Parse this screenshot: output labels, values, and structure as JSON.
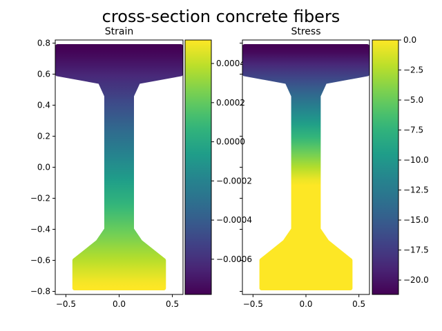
{
  "figure": {
    "suptitle": "cross-section concrete fibers"
  },
  "chart_data": [
    {
      "type": "scatter",
      "title": "Strain",
      "xlabel": "",
      "ylabel": "",
      "xlim": [
        -0.6,
        0.6
      ],
      "ylim": [
        -0.82,
        0.82
      ],
      "xticks": [
        -0.5,
        0.0,
        0.5
      ],
      "xtick_labels": [
        "−0.5",
        "0.0",
        "0.5"
      ],
      "yticks": [
        -0.8,
        -0.6,
        -0.4,
        -0.2,
        0.0,
        0.2,
        0.4,
        0.6,
        0.8
      ],
      "ytick_labels": [
        "−0.8",
        "−0.6",
        "−0.4",
        "−0.2",
        "0.0",
        "0.2",
        "0.4",
        "0.6",
        "0.8"
      ],
      "colormap": "viridis",
      "color_value_at_y": {
        "y": [
          -0.76,
          0.76
        ],
        "value": [
          0.00052,
          -0.00078
        ]
      },
      "colorbar": {
        "range": [
          -0.00078,
          0.00052
        ],
        "ticks": [
          0.0004,
          0.0002,
          0.0,
          -0.0002,
          -0.0004,
          -0.0006
        ],
        "tick_labels": [
          "0.0004",
          "0.0002",
          "0.0000",
          "−0.0002",
          "−0.0004",
          "−0.0006"
        ]
      }
    },
    {
      "type": "scatter",
      "title": "Stress",
      "xlabel": "",
      "ylabel": "",
      "xlim": [
        -0.6,
        0.6
      ],
      "ylim": [
        -0.82,
        0.82
      ],
      "xticks": [
        -0.5,
        0.0,
        0.5
      ],
      "xtick_labels": [
        "−0.5",
        "0.0",
        "0.5"
      ],
      "colormap": "viridis",
      "color_value_at_y": {
        "y": [
          -0.76,
          -0.1,
          0.76
        ],
        "value": [
          0.0,
          0.0,
          -21.2
        ]
      },
      "colorbar": {
        "range": [
          -21.2,
          0.0
        ],
        "ticks": [
          0.0,
          -2.5,
          -5.0,
          -7.5,
          -10.0,
          -12.5,
          -15.0,
          -17.5,
          -20.0
        ],
        "tick_labels": [
          "0.0",
          "−2.5",
          "−5.0",
          "−7.5",
          "−10.0",
          "−12.5",
          "−15.0",
          "−17.5",
          "−20.0"
        ]
      }
    }
  ],
  "section_outline": {
    "x": [
      -0.58,
      0.58,
      0.58,
      0.18,
      0.12,
      0.12,
      0.2,
      0.42,
      0.42,
      -0.42,
      -0.42,
      -0.2,
      -0.12,
      -0.12,
      -0.18,
      -0.58
    ],
    "y": [
      0.78,
      0.78,
      0.6,
      0.55,
      0.46,
      -0.4,
      -0.48,
      -0.6,
      -0.78,
      -0.78,
      -0.6,
      -0.48,
      -0.4,
      0.46,
      0.55,
      0.6
    ]
  },
  "colors": {
    "viridis_stops": [
      "#440154",
      "#482878",
      "#3e4989",
      "#31688e",
      "#26828e",
      "#1f9e89",
      "#35b779",
      "#6ece58",
      "#b5de2b",
      "#fde725"
    ]
  }
}
